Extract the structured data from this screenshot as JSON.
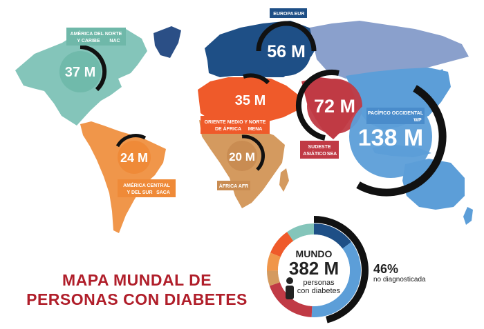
{
  "title": {
    "line1": "MAPA MUNDAL DE",
    "line2": "PERSONAS CON DIABETES"
  },
  "colors": {
    "nac": "#84c5ba",
    "saca": "#f0964a",
    "mena": "#ef5a2a",
    "afr": "#d49a5f",
    "eur": "#1e4f86",
    "sea": "#c03a45",
    "wp": "#5c9ed8",
    "ring": "#111111"
  },
  "regions": [
    {
      "id": "nac",
      "value": "37 M",
      "label_lines": [
        "AMÉRICA DEL NORTE",
        "Y CARIBE"
      ],
      "code": "NAC"
    },
    {
      "id": "saca",
      "value": "24 M",
      "label_lines": [
        "AMÉRICA CENTRAL",
        "Y DEL SUR"
      ],
      "code": "SACA"
    },
    {
      "id": "mena",
      "value": "35 M",
      "label_lines": [
        "ORIENTE MEDIO Y NORTE",
        "DE ÁFRICA"
      ],
      "code": "MENA"
    },
    {
      "id": "afr",
      "value": "20 M",
      "label_lines": [
        "ÁFRICA"
      ],
      "code": "AFR"
    },
    {
      "id": "eur",
      "value": "56 M",
      "label_lines": [
        "EUROPA"
      ],
      "code": "EUR"
    },
    {
      "id": "sea",
      "value": "72 M",
      "label_lines": [
        "SUDESTE",
        "ASIÁTICO"
      ],
      "code": "SEA"
    },
    {
      "id": "wp",
      "value": "138 M",
      "label_lines": [
        "PACÍFICO OCCIDENTAL"
      ],
      "code": "WP"
    }
  ],
  "world": {
    "heading": "MUNDO",
    "value": "382 M",
    "caption_line1": "personas",
    "caption_line2": "con diabetes",
    "undiagnosed_pct": "46%",
    "undiagnosed_label": "no diagnosticada",
    "undiagnosed_fraction": 0.46
  }
}
